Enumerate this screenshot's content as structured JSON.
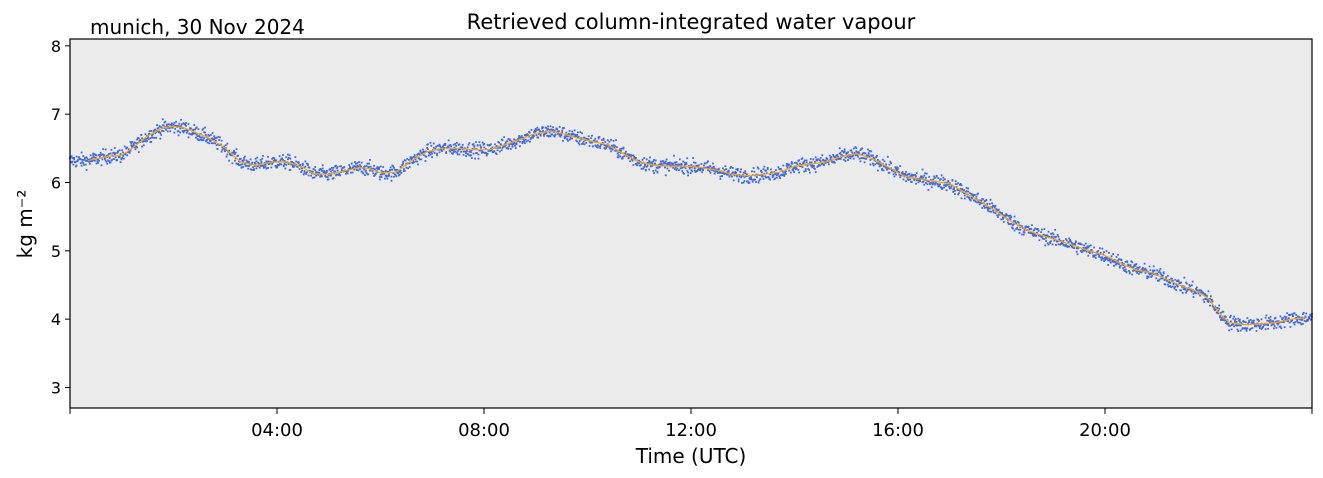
{
  "location_date": "munich, 30 Nov 2024",
  "chart_data": {
    "type": "scatter",
    "title": "Retrieved column-integrated water vapour",
    "xlabel": "Time (UTC)",
    "ylabel": "kg m⁻²",
    "xlim_hours": [
      0,
      24
    ],
    "ylim": [
      2.7,
      8.1
    ],
    "yticks": [
      3,
      4,
      5,
      6,
      7,
      8
    ],
    "xticks_hours": [
      4,
      8,
      12,
      16,
      20
    ],
    "xtick_labels": [
      "04:00",
      "08:00",
      "12:00",
      "16:00",
      "20:00"
    ],
    "grid": false,
    "background_color": "#ebebeb",
    "colors": {
      "points": "#4169e1",
      "smooth": "#ffa500"
    },
    "series": [
      {
        "kind": "smoothed_line",
        "x_hours": [
          0.35,
          0.7,
          1.0,
          1.2,
          1.5,
          1.8,
          2.0,
          2.2,
          2.4,
          2.6,
          2.8,
          3.0,
          3.3,
          3.6,
          3.9,
          4.2,
          4.5,
          4.7,
          5.0,
          5.3,
          5.6,
          5.8,
          6.0,
          6.3,
          6.6,
          6.9,
          7.2,
          7.5,
          7.8,
          8.1,
          8.4,
          8.7,
          9.0,
          9.3,
          9.5,
          9.8,
          10.1,
          10.4,
          10.7,
          11.0,
          11.3,
          11.6,
          11.9,
          12.2,
          12.5,
          12.8,
          13.1,
          13.4,
          13.7,
          14.0,
          14.3,
          14.6,
          14.9,
          15.2,
          15.5,
          15.8,
          16.1,
          16.4,
          16.7,
          17.0,
          17.3,
          17.6,
          17.9,
          18.2,
          18.5,
          18.8,
          19.1,
          19.4,
          19.7,
          20.0,
          20.3,
          20.6,
          20.9,
          21.2,
          21.5,
          21.8,
          22.0,
          22.2,
          22.4,
          22.7,
          23.0,
          23.3,
          23.6,
          23.9
        ],
        "y": [
          6.32,
          6.38,
          6.4,
          6.5,
          6.68,
          6.8,
          6.82,
          6.8,
          6.74,
          6.68,
          6.6,
          6.5,
          6.3,
          6.25,
          6.3,
          6.3,
          6.22,
          6.13,
          6.12,
          6.17,
          6.22,
          6.2,
          6.14,
          6.15,
          6.32,
          6.45,
          6.5,
          6.5,
          6.48,
          6.48,
          6.55,
          6.63,
          6.72,
          6.75,
          6.72,
          6.65,
          6.6,
          6.55,
          6.42,
          6.3,
          6.25,
          6.24,
          6.24,
          6.22,
          6.18,
          6.12,
          6.1,
          6.12,
          6.15,
          6.24,
          6.27,
          6.3,
          6.38,
          6.42,
          6.35,
          6.23,
          6.1,
          6.05,
          6.02,
          5.98,
          5.85,
          5.72,
          5.58,
          5.42,
          5.3,
          5.22,
          5.15,
          5.08,
          5.0,
          4.93,
          4.82,
          4.72,
          4.68,
          4.58,
          4.48,
          4.4,
          4.3,
          4.1,
          3.95,
          3.92,
          3.93,
          3.95,
          4.0,
          4.02
        ]
      },
      {
        "kind": "scatter_points",
        "description_of_values": "dense 1-min retrievals scattered about the smoothed line with spread about ±0.15 kg m⁻²"
      }
    ]
  }
}
